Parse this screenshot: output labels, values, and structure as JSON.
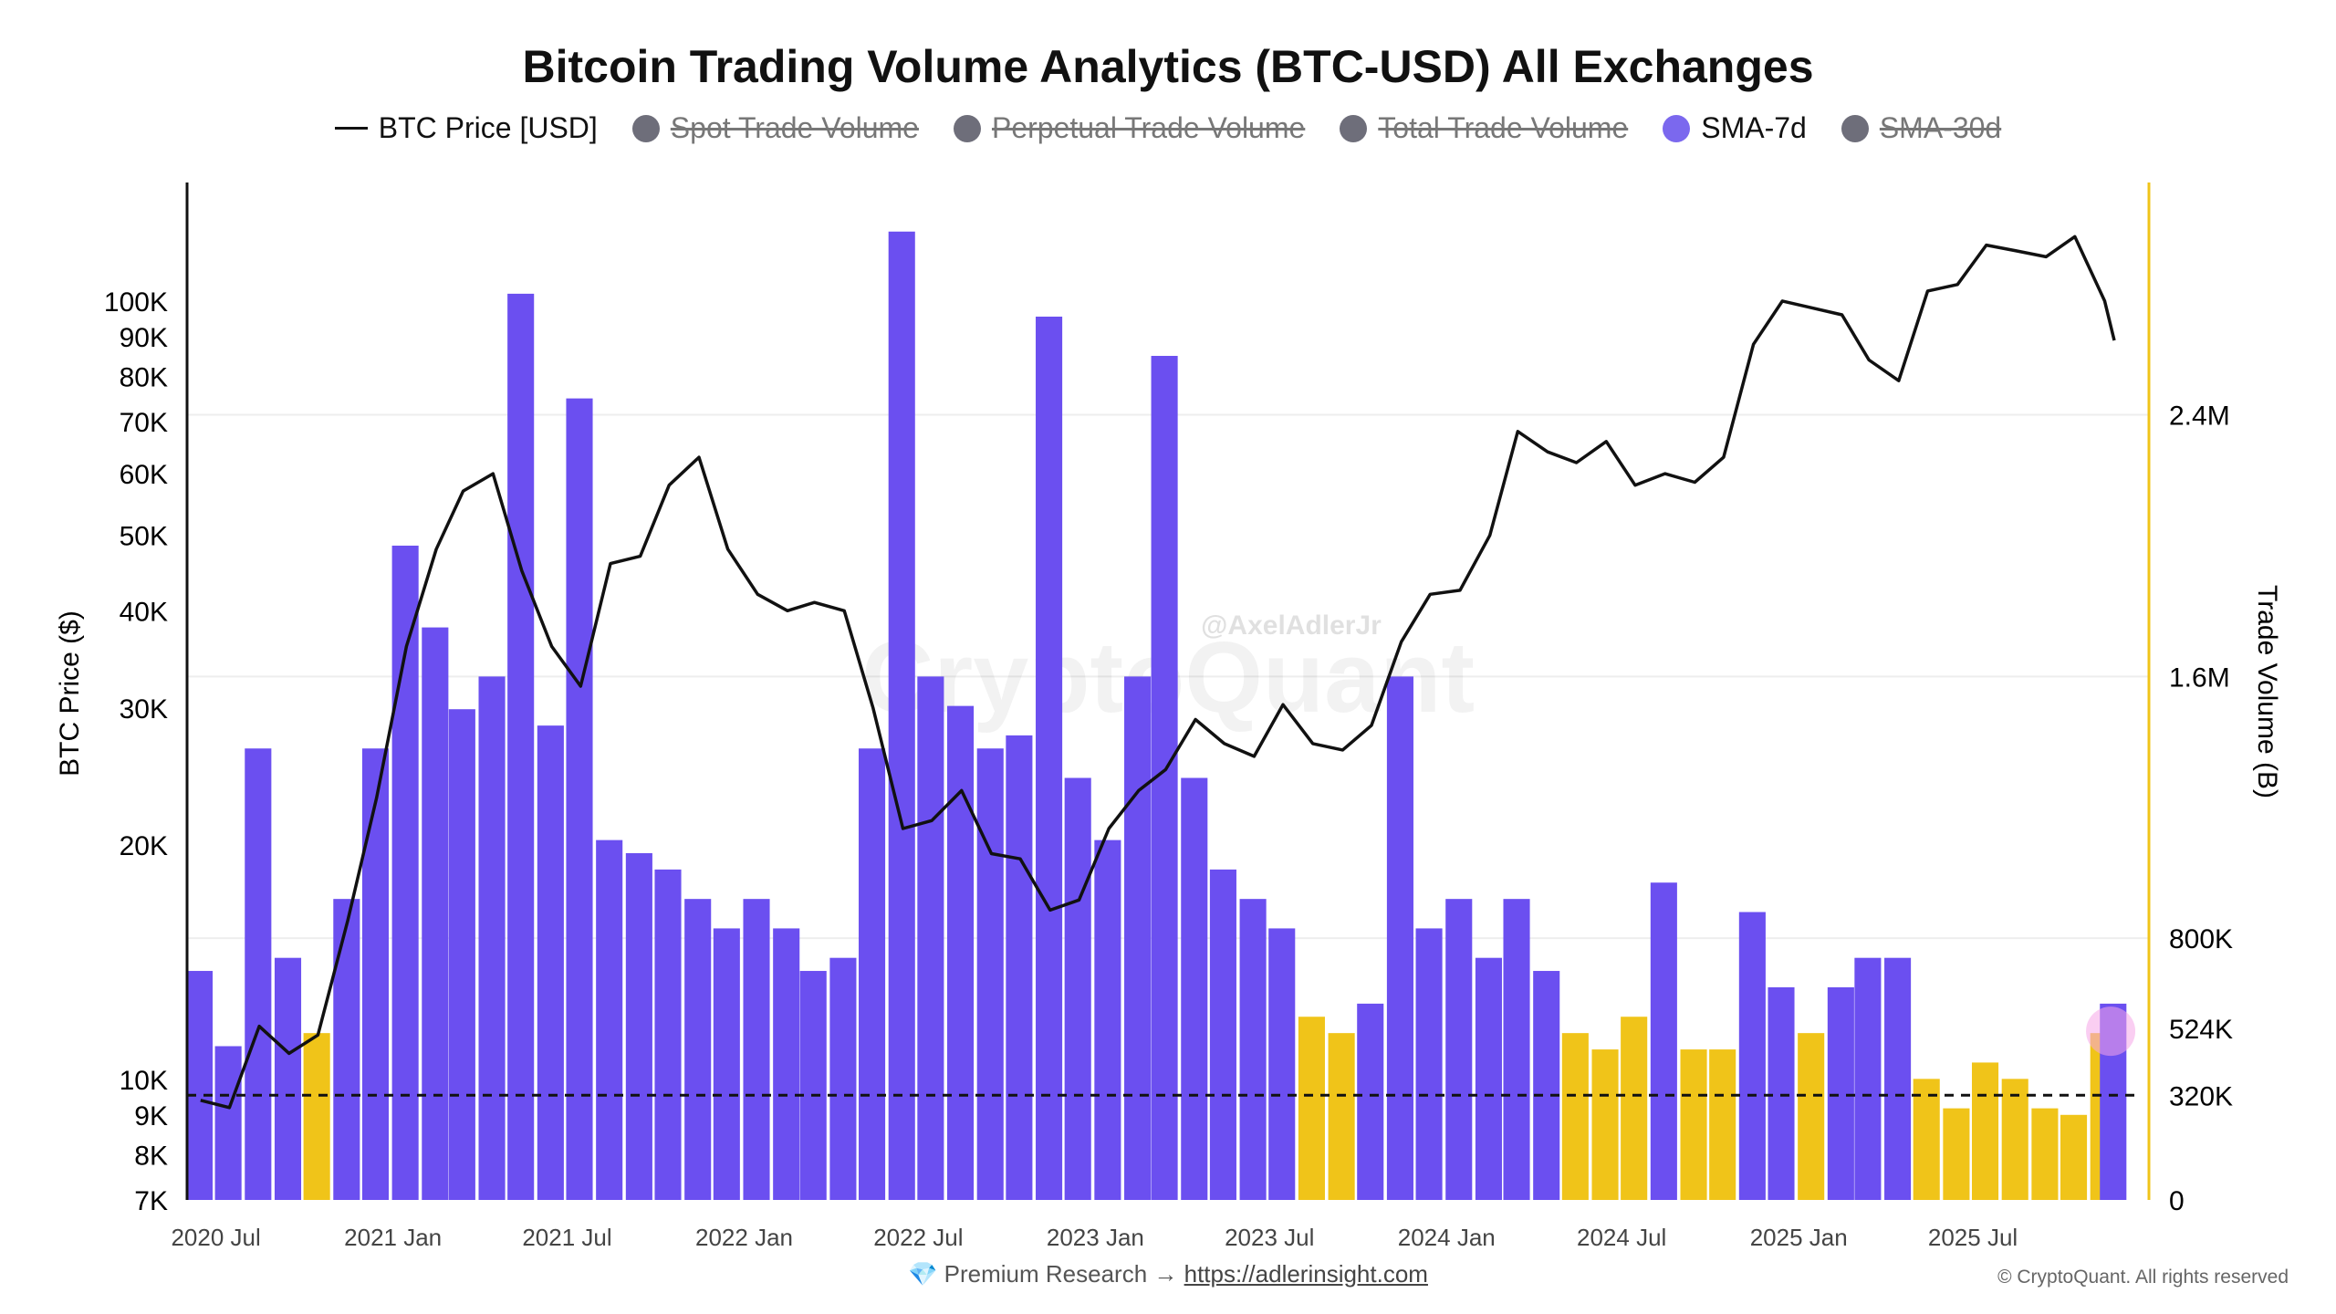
{
  "chart_data": {
    "type": "bar+line",
    "title": "Bitcoin Trading Volume Analytics (BTC-USD) All Exchanges",
    "legend": [
      {
        "label": "BTC Price [USD]",
        "marker": "line",
        "color": "#111111",
        "active": true
      },
      {
        "label": "Spot Trade Volume",
        "marker": "dot",
        "color": "#6e6e7a",
        "active": false
      },
      {
        "label": "Perpetual Trade Volume",
        "marker": "dot",
        "color": "#6e6e7a",
        "active": false
      },
      {
        "label": "Total Trade Volume",
        "marker": "dot",
        "color": "#6e6e7a",
        "active": false
      },
      {
        "label": "SMA-7d",
        "marker": "dot",
        "color": "#7b68ee",
        "active": true
      },
      {
        "label": "SMA-30d",
        "marker": "dot",
        "color": "#6e6e7a",
        "active": false
      }
    ],
    "legend_placement": "top",
    "ylabel_left": "BTC Price ($)",
    "ylabel_right": "Trade Volume (B)",
    "y_left_scale": "log",
    "ylim_left": [
      7000,
      142000
    ],
    "ylim_right": [
      0,
      3110000
    ],
    "xlim": [
      "2020-06-01",
      "2025-12-31"
    ],
    "x_ticks": [
      {
        "date": "2020-07-01",
        "label": "2020 Jul"
      },
      {
        "date": "2021-01-01",
        "label": "2021 Jan"
      },
      {
        "date": "2021-07-01",
        "label": "2021 Jul"
      },
      {
        "date": "2022-01-01",
        "label": "2022 Jan"
      },
      {
        "date": "2022-07-01",
        "label": "2022 Jul"
      },
      {
        "date": "2023-01-01",
        "label": "2023 Jan"
      },
      {
        "date": "2023-07-01",
        "label": "2023 Jul"
      },
      {
        "date": "2024-01-01",
        "label": "2024 Jan"
      },
      {
        "date": "2024-07-01",
        "label": "2024 Jul"
      },
      {
        "date": "2025-01-01",
        "label": "2025 Jan"
      },
      {
        "date": "2025-07-01",
        "label": "2025 Jul"
      }
    ],
    "y_left_ticks": [
      {
        "value": 7000,
        "label": "7K"
      },
      {
        "value": 8000,
        "label": "8K"
      },
      {
        "value": 9000,
        "label": "9K"
      },
      {
        "value": 10000,
        "label": "10K"
      },
      {
        "value": 20000,
        "label": "20K"
      },
      {
        "value": 30000,
        "label": "30K"
      },
      {
        "value": 40000,
        "label": "40K"
      },
      {
        "value": 50000,
        "label": "50K"
      },
      {
        "value": 60000,
        "label": "60K"
      },
      {
        "value": 70000,
        "label": "70K"
      },
      {
        "value": 80000,
        "label": "80K"
      },
      {
        "value": 90000,
        "label": "90K"
      },
      {
        "value": 100000,
        "label": "100K"
      }
    ],
    "y_right_ticks": [
      {
        "value": 0,
        "label": "0"
      },
      {
        "value": 320000,
        "label": "320K"
      },
      {
        "value": 524000,
        "label": "524K"
      },
      {
        "value": 800000,
        "label": "800K"
      },
      {
        "value": 1600000,
        "label": "1.6M"
      },
      {
        "value": 2400000,
        "label": "2.4M"
      }
    ],
    "threshold_line": {
      "value": 320000,
      "style": "dashed",
      "color": "#111111"
    },
    "colors": {
      "volume_high": "#6b4ff0",
      "volume_low": "#f0c419",
      "price": "#111111",
      "right_axis": "#f0c419",
      "marker": "#f5a6e8"
    },
    "price": {
      "dates": [
        "2020-06-15",
        "2020-07-15",
        "2020-08-15",
        "2020-09-15",
        "2020-10-15",
        "2020-11-15",
        "2020-12-15",
        "2021-01-15",
        "2021-02-15",
        "2021-03-15",
        "2021-04-15",
        "2021-05-15",
        "2021-06-15",
        "2021-07-15",
        "2021-08-15",
        "2021-09-15",
        "2021-10-15",
        "2021-11-15",
        "2021-12-15",
        "2022-01-15",
        "2022-02-15",
        "2022-03-15",
        "2022-04-15",
        "2022-05-15",
        "2022-06-15",
        "2022-07-15",
        "2022-08-15",
        "2022-09-15",
        "2022-10-15",
        "2022-11-15",
        "2022-12-15",
        "2023-01-15",
        "2023-02-15",
        "2023-03-15",
        "2023-04-15",
        "2023-05-15",
        "2023-06-15",
        "2023-07-15",
        "2023-08-15",
        "2023-09-15",
        "2023-10-15",
        "2023-11-15",
        "2023-12-15",
        "2024-01-15",
        "2024-02-15",
        "2024-03-15",
        "2024-04-15",
        "2024-05-15",
        "2024-06-15",
        "2024-07-15",
        "2024-08-15",
        "2024-09-15",
        "2024-10-15",
        "2024-11-15",
        "2024-12-15",
        "2025-01-15",
        "2025-02-15",
        "2025-03-15",
        "2025-04-15",
        "2025-05-15",
        "2025-06-15",
        "2025-07-15",
        "2025-08-15",
        "2025-09-15",
        "2025-10-15",
        "2025-11-15",
        "2025-11-25"
      ],
      "values": [
        9400,
        9200,
        11700,
        10800,
        11400,
        16000,
        23000,
        36000,
        48000,
        57000,
        60000,
        45000,
        36000,
        32000,
        46000,
        47000,
        58000,
        63000,
        48000,
        42000,
        40000,
        41000,
        40000,
        30000,
        21000,
        21500,
        23500,
        19500,
        19200,
        16500,
        17000,
        21000,
        23500,
        25000,
        29000,
        27000,
        26000,
        30300,
        27000,
        26500,
        28500,
        36500,
        42000,
        42500,
        50000,
        68000,
        64000,
        62000,
        66000,
        58000,
        60000,
        58500,
        63000,
        88000,
        100000,
        98000,
        96000,
        84000,
        79000,
        103000,
        105000,
        118000,
        116000,
        114000,
        121000,
        100000,
        89000
      ]
    },
    "volume_sma7d": {
      "dates": [
        "2020-06-15",
        "2020-07-15",
        "2020-08-15",
        "2020-09-15",
        "2020-10-15",
        "2020-11-15",
        "2020-12-15",
        "2021-01-15",
        "2021-02-15",
        "2021-03-15",
        "2021-04-15",
        "2021-05-15",
        "2021-06-15",
        "2021-07-15",
        "2021-08-15",
        "2021-09-15",
        "2021-10-15",
        "2021-11-15",
        "2021-12-15",
        "2022-01-15",
        "2022-02-15",
        "2022-03-15",
        "2022-04-15",
        "2022-05-15",
        "2022-06-15",
        "2022-07-15",
        "2022-08-15",
        "2022-09-15",
        "2022-10-15",
        "2022-11-15",
        "2022-12-15",
        "2023-01-15",
        "2023-02-15",
        "2023-03-15",
        "2023-04-15",
        "2023-05-15",
        "2023-06-15",
        "2023-07-15",
        "2023-08-15",
        "2023-09-15",
        "2023-10-15",
        "2023-11-15",
        "2023-12-15",
        "2024-01-15",
        "2024-02-15",
        "2024-03-15",
        "2024-04-15",
        "2024-05-15",
        "2024-06-15",
        "2024-07-15",
        "2024-08-15",
        "2024-09-15",
        "2024-10-15",
        "2024-11-15",
        "2024-12-15",
        "2025-01-15",
        "2025-02-15",
        "2025-03-15",
        "2025-04-15",
        "2025-05-15",
        "2025-06-15",
        "2025-07-15",
        "2025-08-15",
        "2025-09-15",
        "2025-10-15",
        "2025-11-15",
        "2025-11-25"
      ],
      "values": [
        700000,
        470000,
        1380000,
        740000,
        510000,
        920000,
        1380000,
        2000000,
        1750000,
        1500000,
        1600000,
        2770000,
        1450000,
        2450000,
        1100000,
        1060000,
        1010000,
        920000,
        830000,
        920000,
        830000,
        700000,
        740000,
        1380000,
        2960000,
        1600000,
        1510000,
        1380000,
        1420000,
        2700000,
        1290000,
        1100000,
        1600000,
        2580000,
        1290000,
        1010000,
        920000,
        830000,
        560000,
        510000,
        600000,
        1600000,
        830000,
        920000,
        740000,
        920000,
        700000,
        510000,
        460000,
        560000,
        970000,
        460000,
        460000,
        880000,
        650000,
        510000,
        650000,
        740000,
        740000,
        370000,
        280000,
        420000,
        370000,
        280000,
        260000,
        510000,
        600000
      ],
      "highlight_low": [
        false,
        false,
        false,
        false,
        true,
        false,
        false,
        false,
        false,
        false,
        false,
        false,
        false,
        false,
        false,
        false,
        false,
        false,
        false,
        false,
        false,
        false,
        false,
        false,
        false,
        false,
        false,
        false,
        false,
        false,
        false,
        false,
        false,
        false,
        false,
        false,
        false,
        false,
        true,
        true,
        false,
        false,
        false,
        false,
        false,
        false,
        false,
        true,
        true,
        true,
        false,
        true,
        true,
        false,
        false,
        true,
        false,
        false,
        false,
        true,
        true,
        true,
        true,
        true,
        true,
        true,
        false
      ]
    },
    "watermarks": [
      "CryptoQuant",
      "@AxelAdlerJr"
    ]
  },
  "footer": {
    "text": "Premium Research →",
    "link": "https://adlerinsight.com",
    "icon": "gem-icon"
  },
  "copyright": "© CryptoQuant. All rights reserved"
}
